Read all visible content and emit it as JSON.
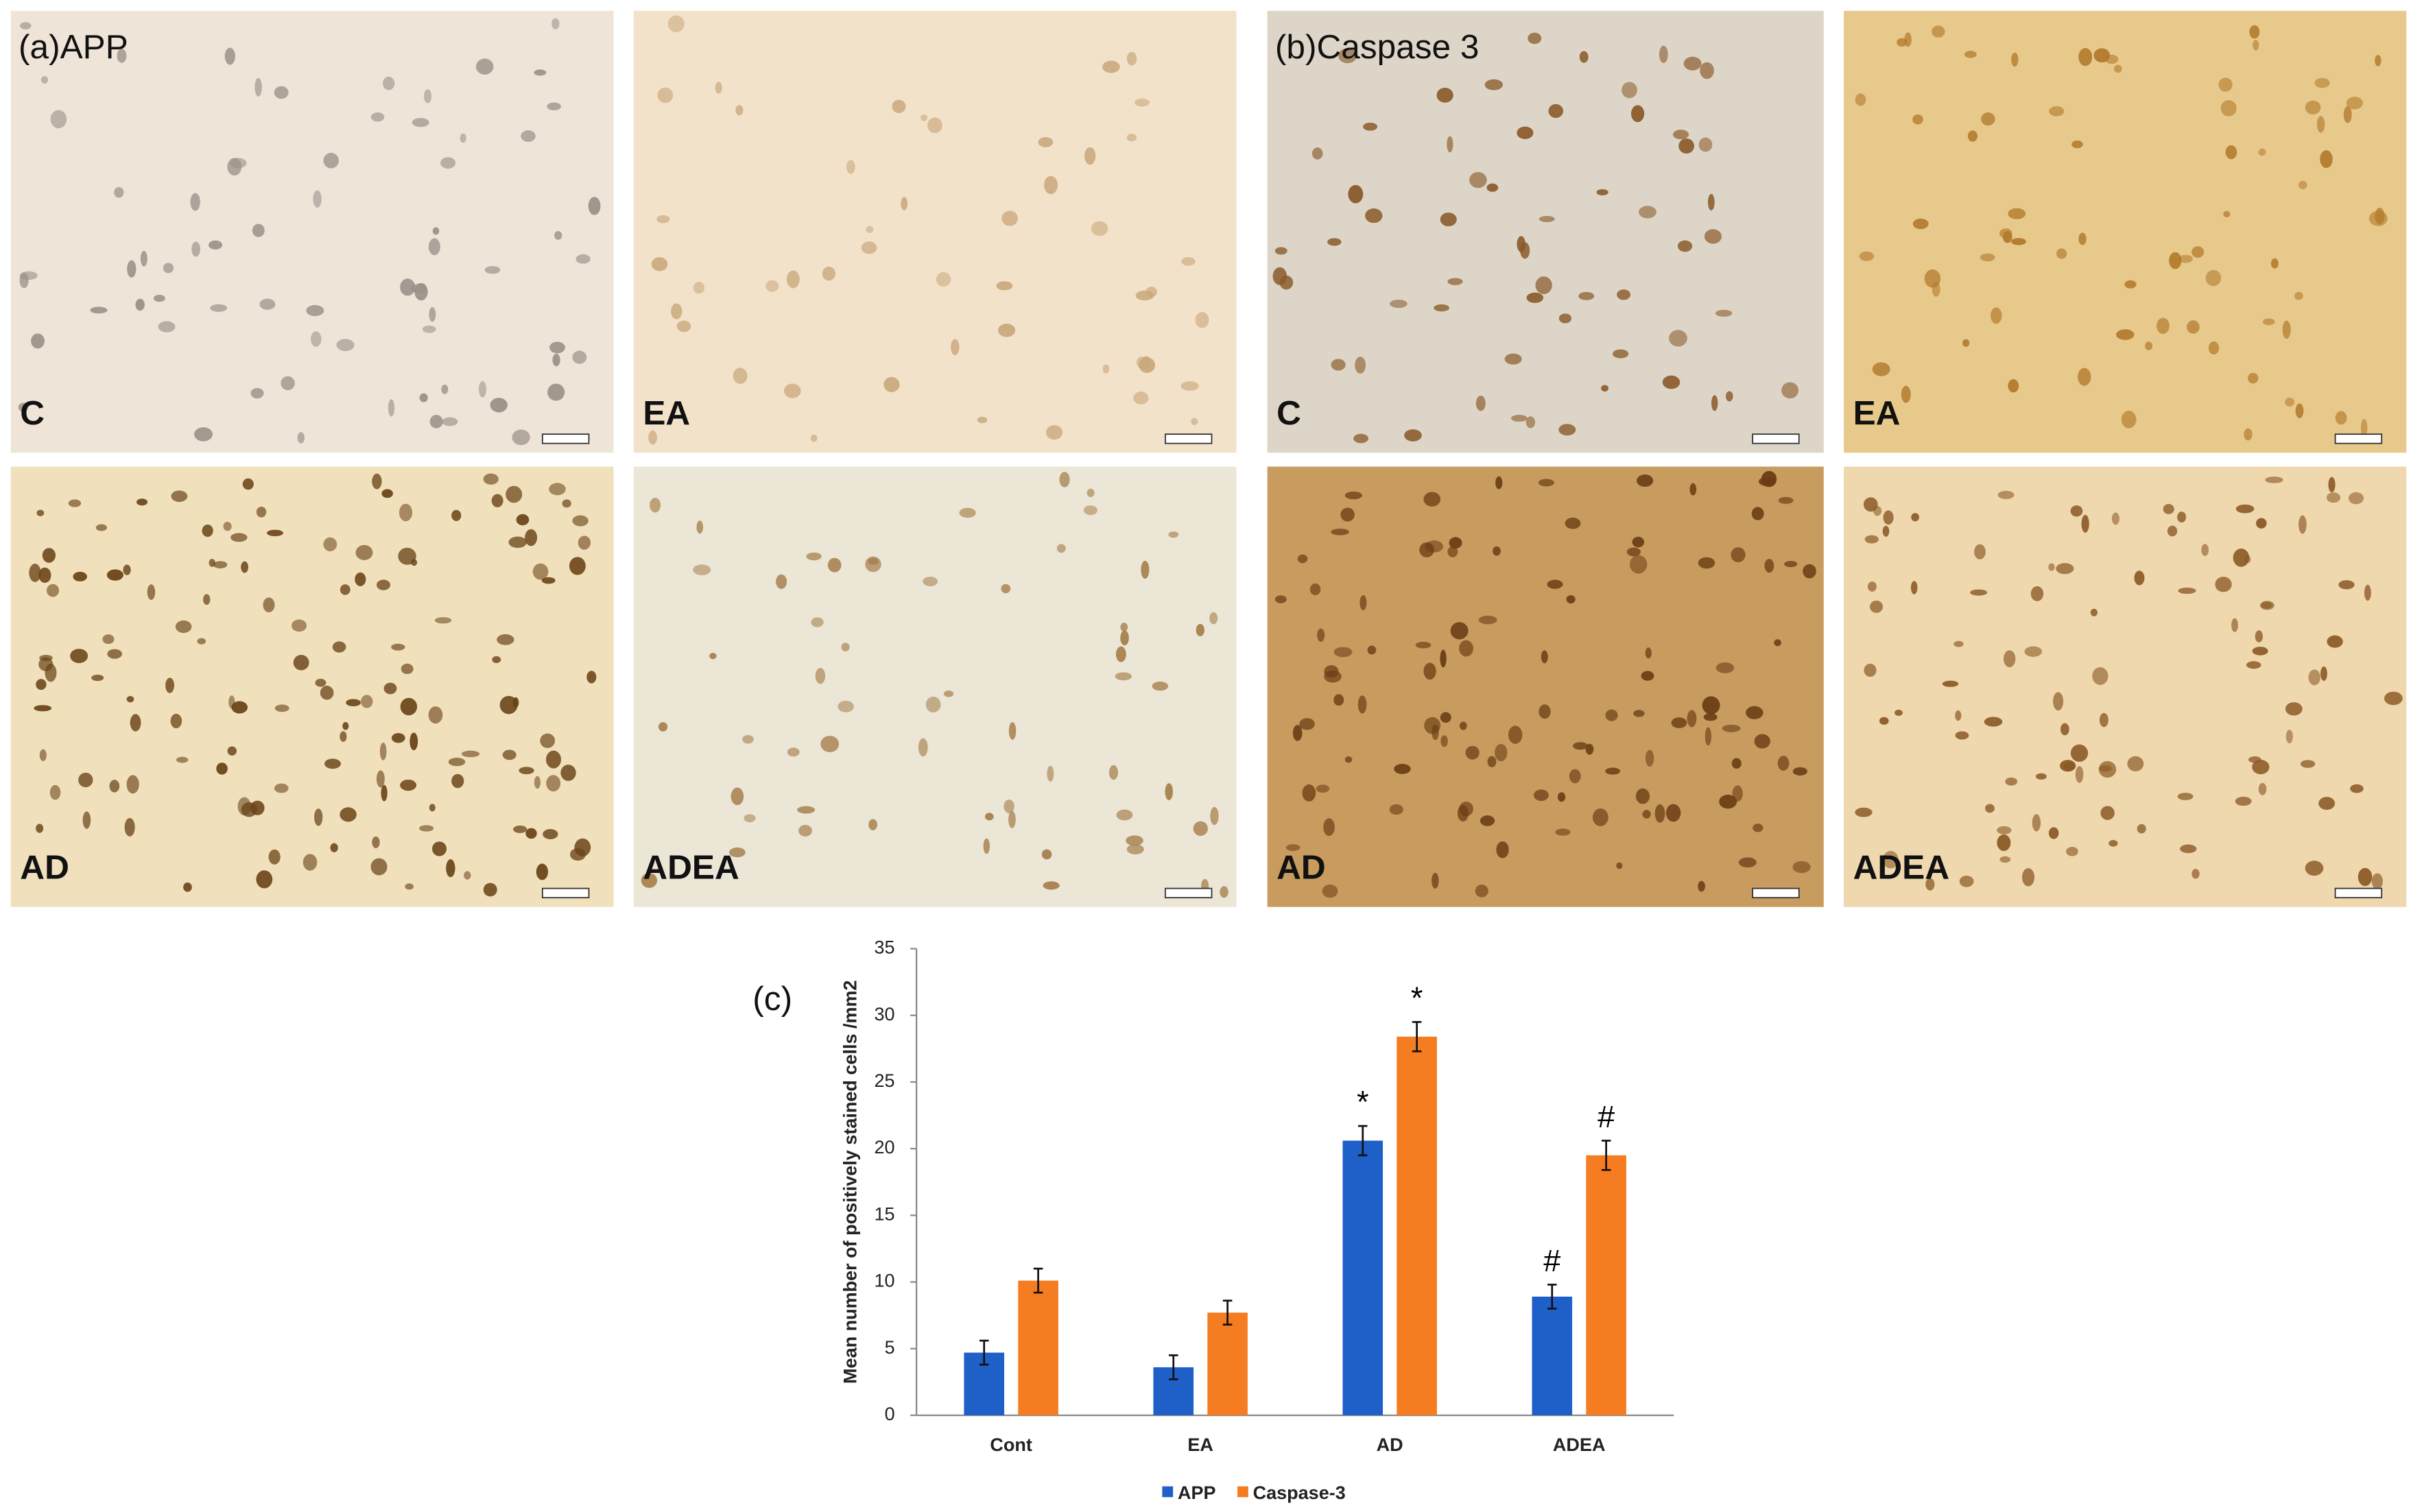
{
  "panels": [
    {
      "title": "(a)APP",
      "labels": [
        "C",
        "EA",
        "AD",
        "ADEA"
      ]
    },
    {
      "title": "(b)Caspase 3",
      "labels": [
        "C",
        "EA",
        "AD",
        "ADEA"
      ]
    }
  ],
  "chart_data": {
    "type": "bar",
    "panel_label": "(c)",
    "ylabel": "Mean number of  positively stained cells /mm2",
    "categories": [
      "Cont",
      "EA",
      "AD",
      "ADEA"
    ],
    "series": [
      {
        "name": "APP",
        "color": "#1f5fc8",
        "values": [
          4.7,
          3.6,
          20.6,
          8.9
        ],
        "errors": [
          0.9,
          0.9,
          1.1,
          0.9
        ],
        "annotations": [
          null,
          null,
          "*",
          "#"
        ]
      },
      {
        "name": "Caspase-3",
        "color": "#f57c20",
        "values": [
          10.1,
          7.7,
          28.4,
          19.5
        ],
        "errors": [
          0.9,
          0.9,
          1.1,
          1.1
        ],
        "annotations": [
          null,
          null,
          "*",
          "#"
        ]
      }
    ],
    "ylim": [
      0,
      35
    ],
    "yticks": [
      0,
      5,
      10,
      15,
      20,
      25,
      30,
      35
    ],
    "grid": false,
    "legend": "bottom"
  }
}
